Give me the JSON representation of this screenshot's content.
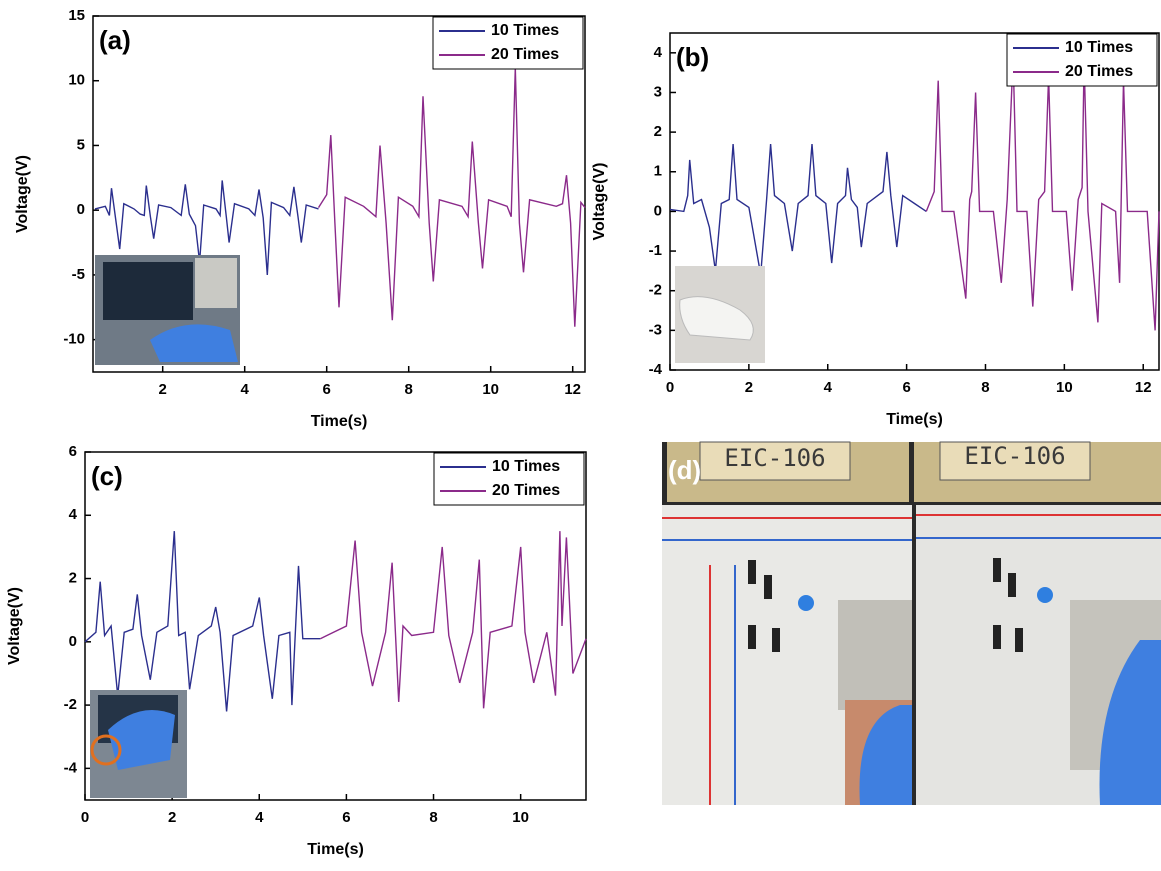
{
  "chart_data": [
    {
      "type": "line",
      "panel_label": "(a)",
      "x_label": "Time(s)",
      "y_label": "Voltage(V)",
      "xlim": [
        0.3,
        12.3
      ],
      "xticks": [
        2,
        4,
        6,
        8,
        10,
        12
      ],
      "ylim": [
        -12.5,
        15
      ],
      "yticks": [
        -10,
        -5,
        0,
        5,
        10,
        15
      ],
      "legend": "upper right",
      "series": [
        {
          "name": "10 Times",
          "color": "#2b2f8e",
          "x": [
            0.35,
            0.6,
            0.7,
            0.75,
            0.85,
            0.95,
            1.05,
            1.3,
            1.45,
            1.55,
            1.6,
            1.7,
            1.78,
            1.9,
            2.2,
            2.45,
            2.55,
            2.65,
            2.8,
            2.9,
            3.0,
            3.3,
            3.4,
            3.45,
            3.55,
            3.62,
            3.75,
            4.1,
            4.25,
            4.35,
            4.45,
            4.55,
            4.65,
            4.95,
            5.1,
            5.2,
            5.3,
            5.38,
            5.5,
            5.8
          ],
          "values": [
            0.1,
            0.3,
            -0.4,
            1.7,
            -0.6,
            -3,
            0.5,
            0.1,
            -0.3,
            -0.4,
            1.9,
            -0.5,
            -2.2,
            0.4,
            0.2,
            -0.4,
            2.0,
            -0.3,
            -1.2,
            -4,
            0.4,
            0.1,
            -0.4,
            2.3,
            -0.5,
            -2.5,
            0.5,
            0.1,
            -0.4,
            1.6,
            -0.6,
            -5,
            0.6,
            0.2,
            -0.4,
            1.8,
            -0.5,
            -2.5,
            0.4,
            0.1
          ]
        },
        {
          "name": "20 Times",
          "color": "#8b2a8a",
          "x": [
            5.8,
            6.0,
            6.1,
            6.2,
            6.3,
            6.45,
            6.9,
            7.2,
            7.3,
            7.45,
            7.6,
            7.75,
            8.1,
            8.25,
            8.35,
            8.5,
            8.6,
            8.75,
            9.3,
            9.45,
            9.55,
            9.7,
            9.8,
            9.95,
            10.4,
            10.5,
            10.6,
            10.7,
            10.8,
            10.95,
            11.6,
            11.75,
            11.85,
            11.95,
            12.05,
            12.2,
            12.3
          ],
          "values": [
            0.2,
            1.2,
            5.8,
            -1,
            -7.5,
            1,
            0.3,
            -0.5,
            5,
            -1,
            -8.5,
            1,
            0.3,
            -0.5,
            8.8,
            -1,
            -5.5,
            0.8,
            0.3,
            -0.5,
            5.3,
            -1,
            -4.5,
            0.8,
            0.3,
            -0.5,
            11,
            -1,
            -4.8,
            0.8,
            0.3,
            0.5,
            2.7,
            -1,
            -9,
            0.6,
            0.2
          ]
        }
      ]
    },
    {
      "type": "line",
      "panel_label": "(b)",
      "x_label": "Time(s)",
      "y_label": "Voltage(V)",
      "xlim": [
        0,
        12.4
      ],
      "xticks": [
        0,
        2,
        4,
        6,
        8,
        10,
        12
      ],
      "ylim": [
        -4,
        4.5
      ],
      "yticks": [
        -4,
        -3,
        -2,
        -1,
        0,
        1,
        2,
        3,
        4
      ],
      "legend": "upper right",
      "series": [
        {
          "name": "10 Times",
          "color": "#2b2f8e",
          "x": [
            0,
            0.35,
            0.45,
            0.5,
            0.6,
            0.8,
            1.0,
            1.15,
            1.3,
            1.5,
            1.6,
            1.7,
            2.0,
            2.3,
            2.45,
            2.55,
            2.65,
            2.9,
            3.1,
            3.25,
            3.5,
            3.6,
            3.7,
            3.95,
            4.1,
            4.25,
            4.45,
            4.5,
            4.6,
            4.75,
            4.85,
            5.0,
            5.4,
            5.5,
            5.6,
            5.75,
            5.9,
            6.2,
            6.5
          ],
          "values": [
            0.05,
            0,
            0.4,
            1.3,
            0.2,
            0.3,
            -0.4,
            -1.5,
            0.2,
            0.3,
            1.7,
            0.3,
            0.1,
            -1.6,
            0.3,
            1.7,
            0.4,
            0.2,
            -1.0,
            0.2,
            0.4,
            1.7,
            0.4,
            0.2,
            -1.3,
            0.2,
            0.4,
            1.1,
            0.3,
            0.1,
            -0.9,
            0.2,
            0.5,
            1.5,
            0.4,
            -0.9,
            0.4,
            0.2,
            0
          ]
        },
        {
          "name": "20 Times",
          "color": "#8b2a8a",
          "x": [
            6.5,
            6.7,
            6.8,
            6.9,
            7.2,
            7.5,
            7.6,
            7.65,
            7.75,
            7.85,
            8.2,
            8.4,
            8.55,
            8.7,
            8.8,
            9.05,
            9.2,
            9.35,
            9.5,
            9.6,
            9.7,
            10.05,
            10.2,
            10.35,
            10.45,
            10.5,
            10.6,
            10.85,
            10.95,
            11.3,
            11.4,
            11.5,
            11.6,
            12.1,
            12.3,
            12.4
          ],
          "values": [
            0,
            0.5,
            3.3,
            0,
            0,
            -2.2,
            0.3,
            0.5,
            3.0,
            0,
            0,
            -1.8,
            0.3,
            3.9,
            0,
            0,
            -2.4,
            0.3,
            0.5,
            3.4,
            0,
            0,
            -2.0,
            0.3,
            0.6,
            3.8,
            0,
            -2.8,
            0.2,
            0,
            -1.8,
            3.3,
            0,
            0,
            -3.0,
            0
          ]
        }
      ]
    },
    {
      "type": "line",
      "panel_label": "(c)",
      "x_label": "Time(s)",
      "y_label": "Voltage(V)",
      "xlim": [
        0,
        11.5
      ],
      "xticks": [
        0,
        2,
        4,
        6,
        8,
        10
      ],
      "ylim": [
        -5,
        6
      ],
      "yticks": [
        -4,
        -2,
        0,
        2,
        4,
        6
      ],
      "legend": "upper right",
      "series": [
        {
          "name": "10 Times",
          "color": "#2b2f8e",
          "x": [
            0,
            0.25,
            0.35,
            0.45,
            0.6,
            0.75,
            0.9,
            1.1,
            1.2,
            1.3,
            1.5,
            1.65,
            1.9,
            2.05,
            2.15,
            2.3,
            2.4,
            2.6,
            2.9,
            3.0,
            3.1,
            3.25,
            3.4,
            3.85,
            4.0,
            4.1,
            4.3,
            4.45,
            4.7,
            4.75,
            4.9,
            5.0,
            5.4
          ],
          "values": [
            0,
            0.3,
            1.9,
            0.2,
            0.5,
            -1.7,
            0.3,
            0.4,
            1.5,
            0.2,
            -1.2,
            0.3,
            0.5,
            3.5,
            0.2,
            0.3,
            -1.5,
            0.2,
            0.5,
            1.1,
            0.3,
            -2.2,
            0.2,
            0.5,
            1.4,
            0.2,
            -1.8,
            0.2,
            0.3,
            -2.0,
            2.4,
            0.1,
            0.1
          ]
        },
        {
          "name": "20 Times",
          "color": "#8b2a8a",
          "x": [
            5.4,
            6.0,
            6.2,
            6.35,
            6.6,
            6.9,
            7.05,
            7.2,
            7.3,
            7.5,
            8.0,
            8.2,
            8.35,
            8.6,
            8.9,
            9.05,
            9.15,
            9.3,
            9.8,
            10.0,
            10.1,
            10.3,
            10.6,
            10.8,
            10.9,
            10.95,
            11.05,
            11.2,
            11.5
          ],
          "values": [
            0.1,
            0.5,
            3.2,
            0.3,
            -1.4,
            0.3,
            2.5,
            -1.9,
            0.5,
            0.2,
            0.3,
            3.0,
            0.2,
            -1.3,
            0.3,
            2.6,
            -2.1,
            0.3,
            0.5,
            3.0,
            0.3,
            -1.3,
            0.3,
            -1.7,
            3.5,
            0.5,
            3.3,
            -1.0,
            0.1
          ]
        }
      ]
    }
  ],
  "photo_panel": {
    "label": "(d)",
    "signs": [
      "EIC-106",
      "EIC-106"
    ]
  }
}
